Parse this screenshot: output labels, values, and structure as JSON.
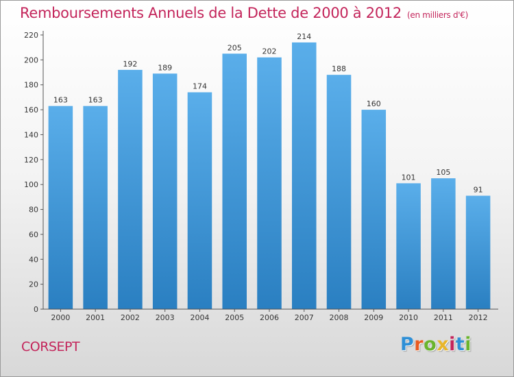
{
  "page": {
    "title": "Remboursements Annuels de la Dette de 2000 à 2012",
    "unit": "(en milliers d'€)",
    "commune": "CORSEPT",
    "logo": {
      "letters": [
        "P",
        "r",
        "o",
        "x",
        "i",
        "t",
        "i"
      ]
    }
  },
  "colors": {
    "title": "#c3245a",
    "bar_top": "#5aaeea",
    "bar_bottom": "#2a7fc1",
    "logo": [
      "#2e8fd6",
      "#e95a20",
      "#6ab42d",
      "#e8b62a",
      "#c3245a",
      "#2e8fd6",
      "#6ab42d"
    ]
  },
  "chart_data": {
    "type": "bar",
    "title": "Remboursements Annuels de la Dette de 2000 à 2012",
    "xlabel": "",
    "ylabel": "",
    "categories": [
      "2000",
      "2001",
      "2002",
      "2003",
      "2004",
      "2005",
      "2006",
      "2007",
      "2008",
      "2009",
      "2010",
      "2011",
      "2012"
    ],
    "values": [
      163,
      163,
      192,
      189,
      174,
      205,
      202,
      214,
      188,
      160,
      101,
      105,
      91
    ],
    "value_labels": [
      "163",
      "163",
      "192",
      "189",
      "174",
      "205",
      "202",
      "214",
      "188",
      "160",
      "101",
      "105",
      "91"
    ],
    "ylim": [
      0,
      220
    ],
    "yticks": [
      "0",
      "20",
      "40",
      "60",
      "80",
      "100",
      "120",
      "140",
      "160",
      "180",
      "200",
      "220"
    ],
    "grid": false,
    "legend": "none"
  }
}
